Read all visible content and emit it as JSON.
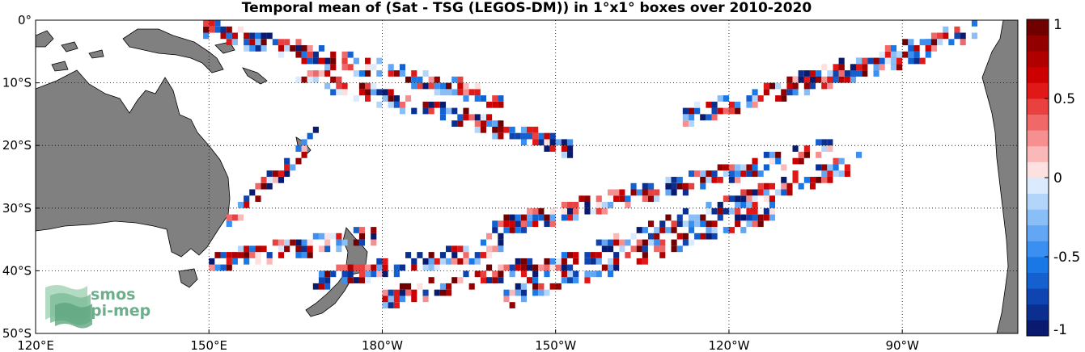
{
  "title": "Temporal mean of (Sat - TSG (LEGOS-DM)) in 1°x1° boxes over 2010-2020",
  "map": {
    "lon_range": [
      120,
      290
    ],
    "lat_range": [
      -50,
      0
    ],
    "lon_ticks": [
      {
        "value": 120,
        "label": "120°E"
      },
      {
        "value": 150,
        "label": "150°E"
      },
      {
        "value": 180,
        "label": "180°W"
      },
      {
        "value": 210,
        "label": "150°W"
      },
      {
        "value": 240,
        "label": "120°W"
      },
      {
        "value": 270,
        "label": "90°W"
      }
    ],
    "lat_ticks": [
      {
        "value": 0,
        "label": "0°"
      },
      {
        "value": -10,
        "label": "10°S"
      },
      {
        "value": -20,
        "label": "20°S"
      },
      {
        "value": -30,
        "label": "30°S"
      },
      {
        "value": -40,
        "label": "40°S"
      },
      {
        "value": -50,
        "label": "50°S"
      }
    ],
    "land_color": "#808080",
    "grid": "dotted"
  },
  "colorbar": {
    "min": -1,
    "max": 1,
    "levels": 20,
    "ticks": [
      {
        "value": 1,
        "label": "1"
      },
      {
        "value": 0.5,
        "label": "0.5"
      },
      {
        "value": 0,
        "label": "0"
      },
      {
        "value": -0.5,
        "label": "-0.5"
      },
      {
        "value": -1,
        "label": "-1"
      }
    ],
    "colors": [
      "#0a1a6e",
      "#0b2f8f",
      "#0f45b0",
      "#1460cf",
      "#1a78e6",
      "#3a8ff0",
      "#62a6f4",
      "#8abef7",
      "#b4d5fa",
      "#dceafd",
      "#fde0e0",
      "#fab8b8",
      "#f69090",
      "#f06868",
      "#e94040",
      "#e01818",
      "#cc0000",
      "#b00000",
      "#920000",
      "#700000"
    ]
  },
  "logo": {
    "line1": "smos",
    "line2": "pi-mep",
    "color": "#6fae8c"
  },
  "chart_data": {
    "type": "heatmap",
    "title": "Temporal mean of (Sat - TSG (LEGOS-DM)) in 1°x1° boxes over 2010-2020",
    "value_range": [
      -1,
      1
    ],
    "x_unit": "longitude (°E, 0-360)",
    "y_unit": "latitude (°)",
    "tracks": [
      {
        "lon": [
          149,
          200
        ],
        "lat": [
          -1,
          -12
        ]
      },
      {
        "lon": [
          164,
          213
        ],
        "lat": [
          -8,
          -20
        ]
      },
      {
        "lon": [
          232,
          275
        ],
        "lat": [
          -15,
          -4
        ]
      },
      {
        "lon": [
          250,
          282
        ],
        "lat": [
          -10,
          -1
        ]
      },
      {
        "lon": [
          198,
          257
        ],
        "lat": [
          -33,
          -20
        ]
      },
      {
        "lon": [
          205,
          262
        ],
        "lat": [
          -40,
          -22
        ]
      },
      {
        "lon": [
          201,
          247
        ],
        "lat": [
          -44,
          -30
        ]
      },
      {
        "lon": [
          153,
          168
        ],
        "lat": [
          -32,
          -18
        ]
      },
      {
        "lon": [
          150,
          178
        ],
        "lat": [
          -38,
          -34
        ]
      },
      {
        "lon": [
          168,
          200
        ],
        "lat": [
          -41,
          -36
        ]
      },
      {
        "lon": [
          180,
          205
        ],
        "lat": [
          -44,
          -39
        ]
      }
    ]
  }
}
